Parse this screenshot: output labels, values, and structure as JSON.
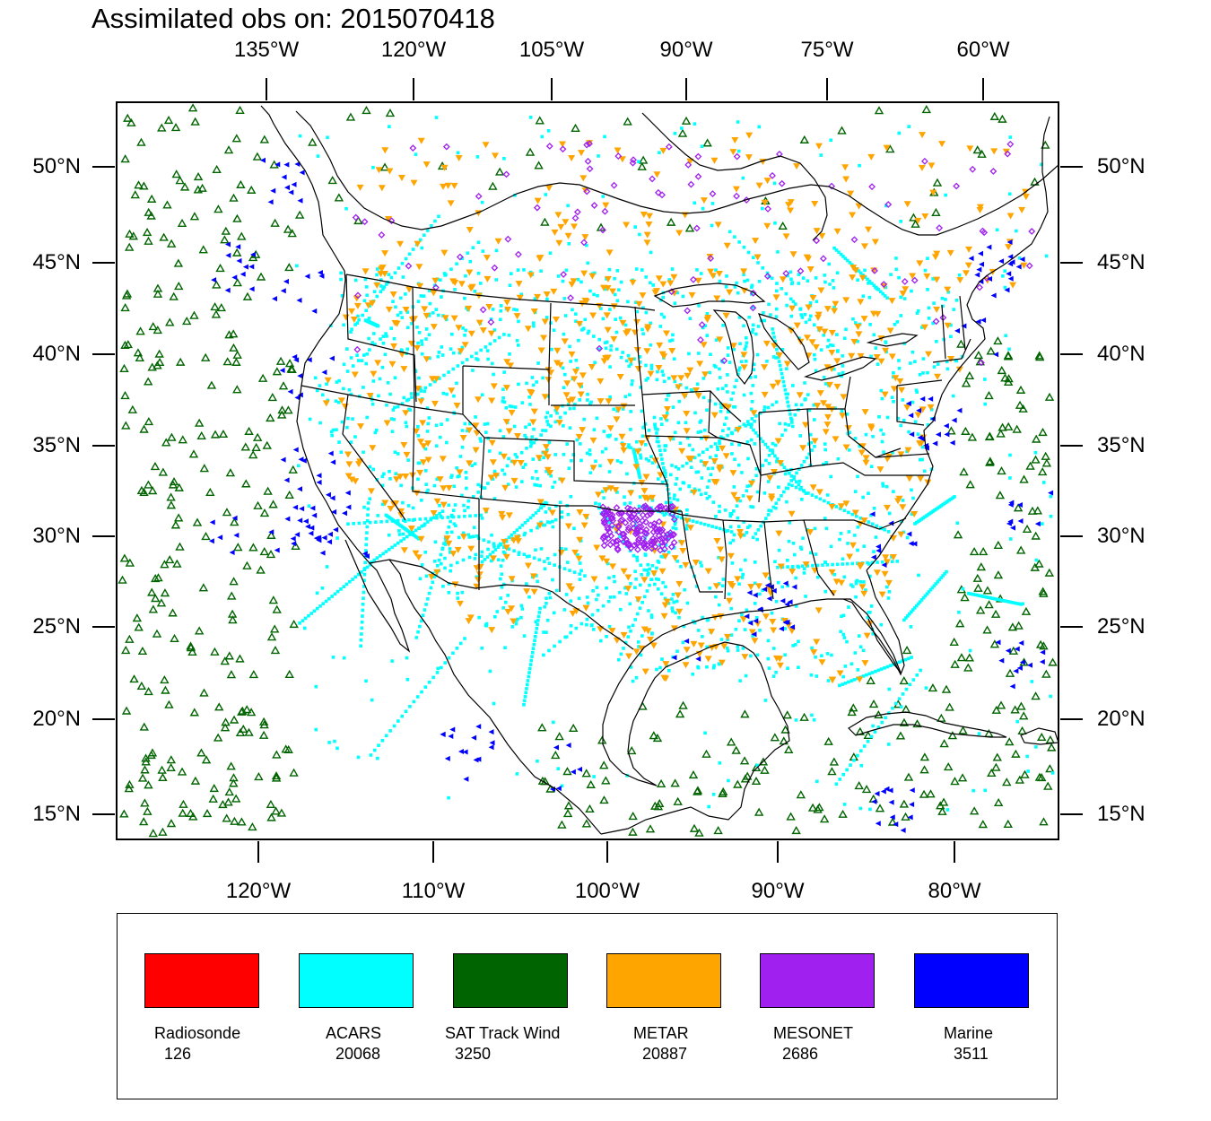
{
  "title": "Assimilated obs on: 2015070418",
  "top_axis_labels": [
    "135°W",
    "120°W",
    "105°W",
    "90°W",
    "75°W",
    "60°W"
  ],
  "bottom_axis_labels": [
    "120°W",
    "110°W",
    "100°W",
    "90°W",
    "80°W"
  ],
  "lat_labels": [
    "50°N",
    "45°N",
    "40°N",
    "35°N",
    "30°N",
    "25°N",
    "20°N",
    "15°N"
  ],
  "legend": [
    {
      "name": "Radiosonde",
      "count": "126",
      "color": "#ff0000",
      "marker": "circle"
    },
    {
      "name": "ACARS",
      "count": "20068",
      "color": "#00ffff",
      "marker": "square"
    },
    {
      "name": "SAT Track Wind",
      "count": "3250",
      "color": "#006400",
      "marker": "triangle-up"
    },
    {
      "name": "METAR",
      "count": "20887",
      "color": "#ffa500",
      "marker": "triangle-down"
    },
    {
      "name": "MESONET",
      "count": "2686",
      "color": "#a020f0",
      "marker": "diamond"
    },
    {
      "name": "Marine",
      "count": "3511",
      "color": "#0000ff",
      "marker": "triangle-left"
    }
  ]
}
